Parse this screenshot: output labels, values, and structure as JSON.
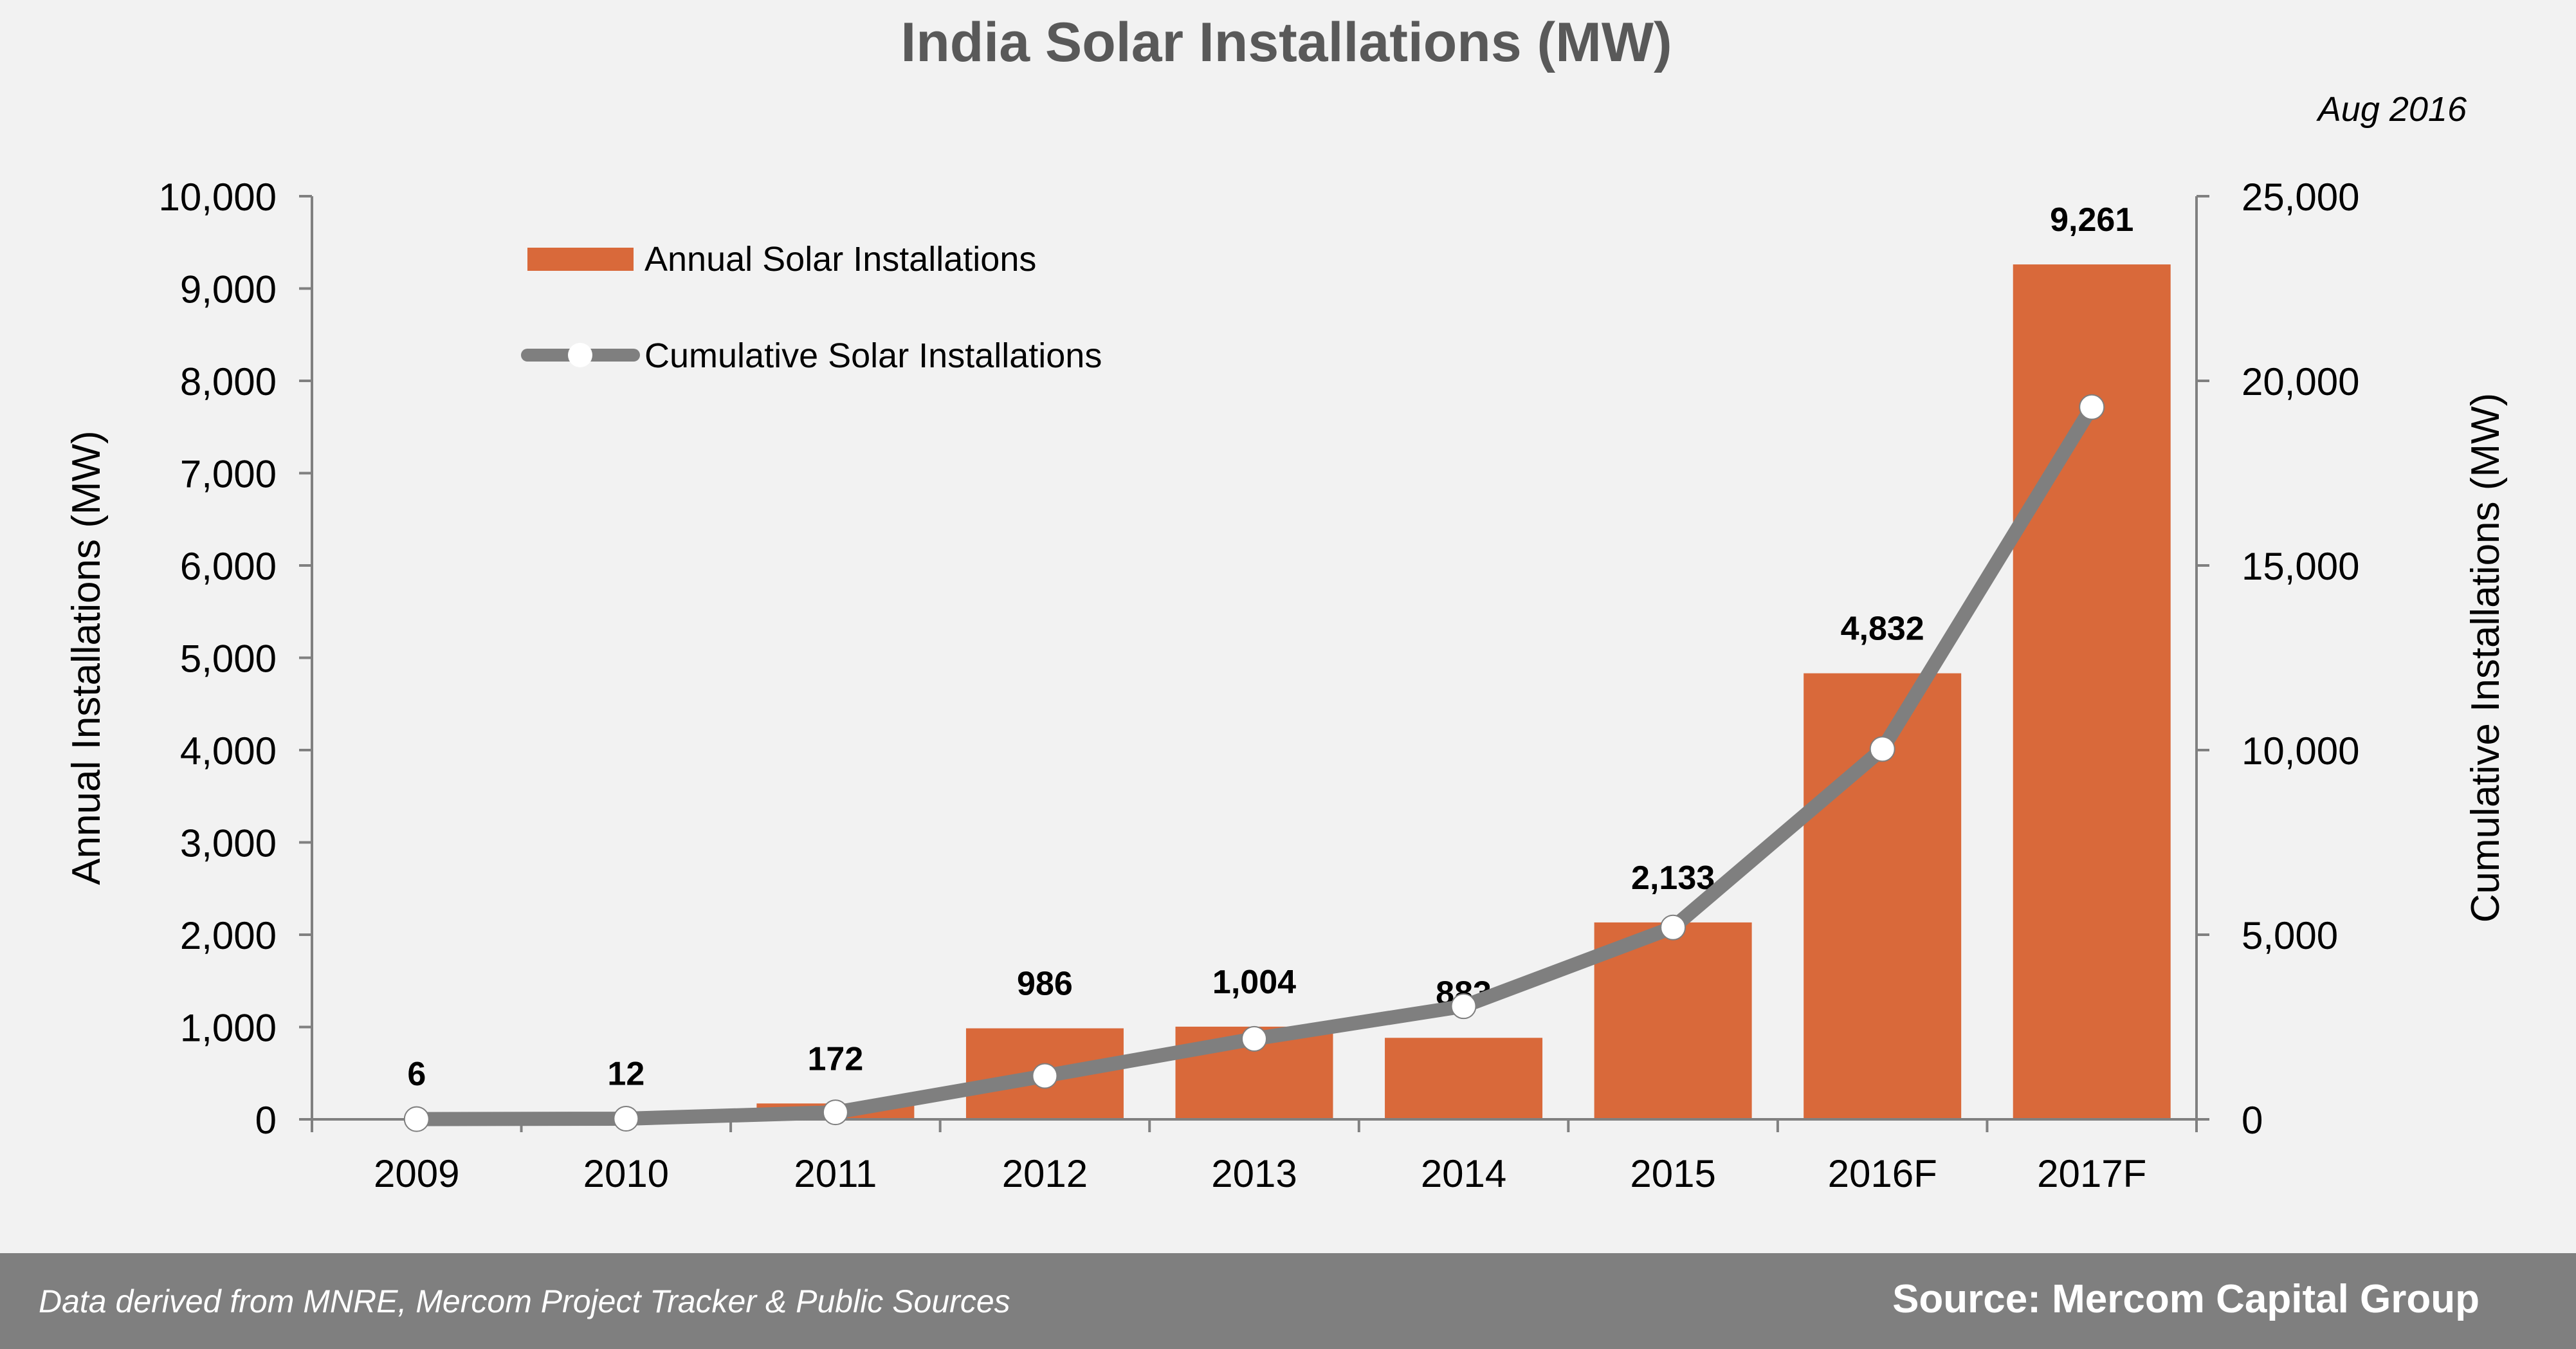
{
  "chart_data": {
    "type": "bar",
    "title": "India Solar Installations (MW)",
    "date_note": "Aug 2016",
    "categories": [
      "2009",
      "2010",
      "2011",
      "2012",
      "2013",
      "2014",
      "2015",
      "2016F",
      "2017F"
    ],
    "series": [
      {
        "name": "Annual Solar Installations",
        "type": "bar",
        "axis": "left",
        "color": "#d9693a",
        "values": [
          6,
          12,
          172,
          986,
          1004,
          883,
          2133,
          4832,
          9261
        ],
        "labels": [
          "6",
          "12",
          "172",
          "986",
          "1,004",
          "883",
          "2,133",
          "4,832",
          "9,261"
        ]
      },
      {
        "name": "Cumulative Solar Installations",
        "type": "line",
        "axis": "right",
        "color": "#7f7f7f",
        "marker_color": "#ffffff",
        "values": [
          6,
          18,
          190,
          1176,
          2180,
          3063,
          5196,
          10028,
          19289
        ]
      }
    ],
    "ylabel": "Annual Installations (MW)",
    "y2label": "Cumulative Installations (MW)",
    "ylim": [
      0,
      10000
    ],
    "y2lim": [
      0,
      25000
    ],
    "yticks": [
      "0",
      "1,000",
      "2,000",
      "3,000",
      "4,000",
      "5,000",
      "6,000",
      "7,000",
      "8,000",
      "9,000",
      "10,000"
    ],
    "y2ticks": [
      "0",
      "5,000",
      "10,000",
      "15,000",
      "20,000",
      "25,000"
    ],
    "grid": false,
    "legend_position": "top-left"
  },
  "footer": {
    "note": "Data derived from MNRE, Mercom Project Tracker & Public  Sources",
    "source": "Source: Mercom Capital Group"
  }
}
